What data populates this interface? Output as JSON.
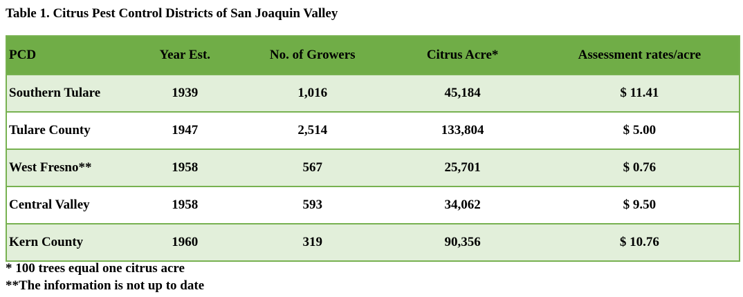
{
  "title": "Table 1. Citrus Pest Control Districts of San Joaquin Valley",
  "table": {
    "headers": [
      "PCD",
      "Year Est.",
      "No. of Growers",
      "Citrus Acre*",
      "Assessment rates/acre"
    ],
    "rows": [
      [
        "Southern Tulare",
        "1939",
        "1,016",
        "45,184",
        "$ 11.41"
      ],
      [
        "Tulare County",
        "1947",
        "2,514",
        "133,804",
        "$ 5.00"
      ],
      [
        "West Fresno**",
        "1958",
        "567",
        "25,701",
        "$ 0.76"
      ],
      [
        "Central Valley",
        "1958",
        "593",
        "34,062",
        "$ 9.50"
      ],
      [
        "Kern County",
        "1960",
        "319",
        "90,356",
        "$ 10.76"
      ]
    ]
  },
  "notes": [
    "* 100 trees equal one citrus acre",
    "**The information is not up to date"
  ],
  "colors": {
    "header_fill": "#70ad47",
    "band_fill": "#e2efda",
    "border": "#77b150"
  }
}
